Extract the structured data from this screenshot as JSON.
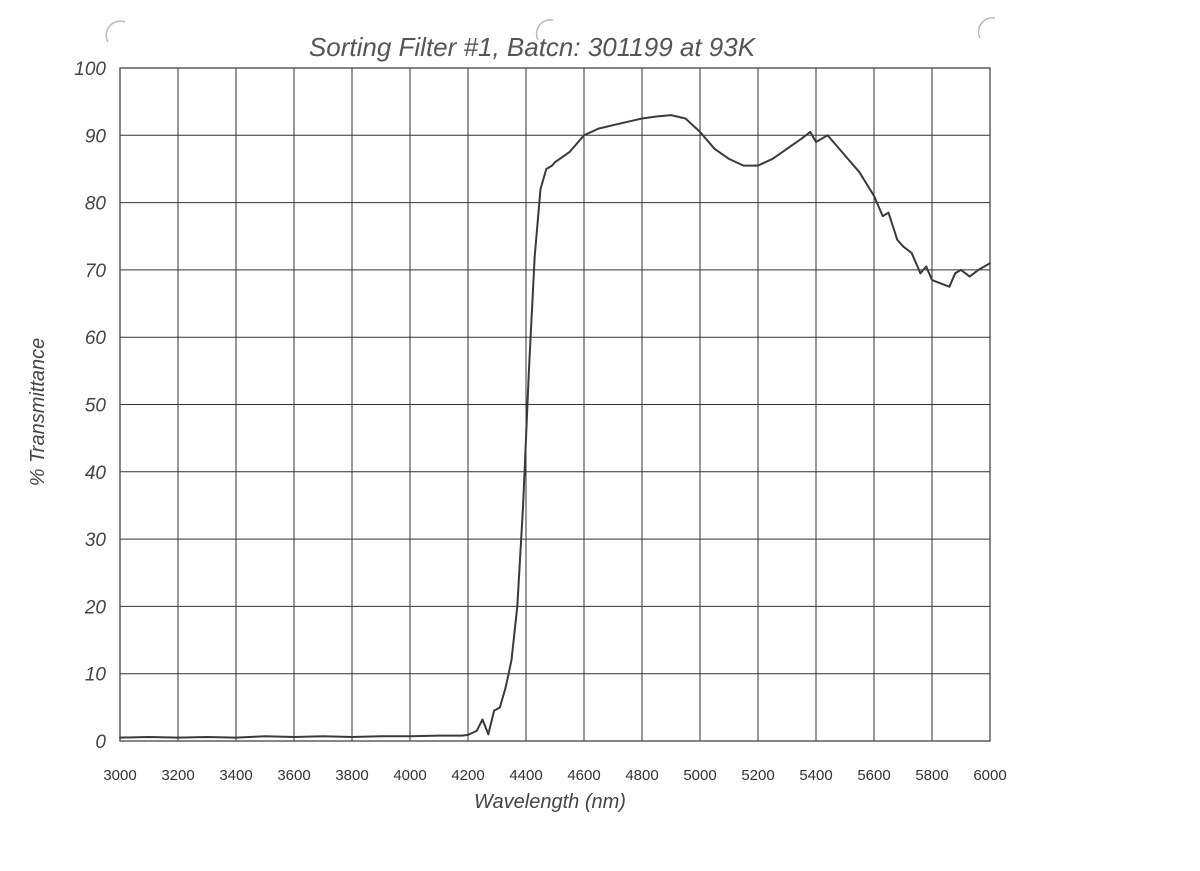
{
  "chart_data": {
    "type": "line",
    "title": "Sorting Filter #1, Batcn: 301199  at 93K",
    "xlabel": "Wavelength (nm)",
    "ylabel": "% Transmittance",
    "xlim": [
      3000,
      6000
    ],
    "ylim": [
      0,
      100
    ],
    "xticks": [
      3000,
      3200,
      3400,
      3600,
      3800,
      4000,
      4200,
      4400,
      4600,
      4800,
      5000,
      5200,
      5400,
      5600,
      5800,
      6000
    ],
    "yticks": [
      0,
      10,
      20,
      30,
      40,
      50,
      60,
      70,
      80,
      90,
      100
    ],
    "grid": true,
    "legend": "none",
    "series": [
      {
        "color": "#3a3a3a",
        "x": [
          3000,
          3100,
          3200,
          3300,
          3400,
          3500,
          3600,
          3700,
          3800,
          3900,
          4000,
          4100,
          4180,
          4200,
          4230,
          4250,
          4270,
          4290,
          4310,
          4330,
          4350,
          4370,
          4390,
          4410,
          4430,
          4450,
          4470,
          4490,
          4500,
          4550,
          4600,
          4650,
          4700,
          4750,
          4800,
          4850,
          4900,
          4950,
          5000,
          5050,
          5100,
          5150,
          5200,
          5250,
          5300,
          5350,
          5380,
          5400,
          5440,
          5460,
          5500,
          5550,
          5600,
          5630,
          5650,
          5680,
          5700,
          5730,
          5760,
          5780,
          5800,
          5830,
          5860,
          5880,
          5900,
          5930,
          5960,
          6000
        ],
        "y": [
          0.5,
          0.6,
          0.5,
          0.6,
          0.5,
          0.7,
          0.6,
          0.7,
          0.6,
          0.7,
          0.7,
          0.8,
          0.8,
          0.9,
          1.5,
          3.2,
          1.0,
          4.5,
          5.0,
          8.0,
          12.0,
          20.0,
          35.0,
          55.0,
          72.0,
          82.0,
          85.0,
          85.5,
          86.0,
          87.5,
          90.0,
          91.0,
          91.5,
          92.0,
          92.5,
          92.8,
          93.0,
          92.5,
          90.5,
          88.0,
          86.5,
          85.5,
          85.5,
          86.5,
          88.0,
          89.5,
          90.5,
          89.0,
          90.0,
          89.0,
          87.0,
          84.5,
          81.0,
          78.0,
          78.5,
          74.5,
          73.5,
          72.5,
          69.5,
          70.5,
          68.5,
          68.0,
          67.5,
          69.5,
          70.0,
          69.0,
          70.0,
          71.0
        ]
      }
    ]
  }
}
